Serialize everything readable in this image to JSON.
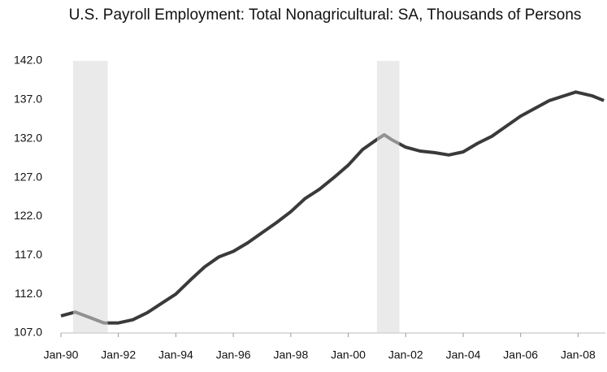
{
  "chart_data": {
    "type": "line",
    "title": "U.S. Payroll Employment: Total Nonagricultural: SA, Thousands of Persons",
    "x": [
      1990.0,
      1990.5,
      1991.0,
      1991.5,
      1992.0,
      1992.5,
      1993.0,
      1993.5,
      1994.0,
      1994.5,
      1995.0,
      1995.5,
      1996.0,
      1996.5,
      1997.0,
      1997.5,
      1998.0,
      1998.5,
      1999.0,
      1999.5,
      2000.0,
      2000.5,
      2001.0,
      2001.25,
      2001.5,
      2002.0,
      2002.5,
      2003.0,
      2003.5,
      2004.0,
      2004.5,
      2005.0,
      2005.5,
      2006.0,
      2006.5,
      2007.0,
      2007.5,
      2007.92,
      2008.5,
      2008.9
    ],
    "series": [
      {
        "color": "#3a3a3a",
        "values": [
          109.2,
          109.7,
          109.0,
          108.3,
          108.3,
          108.7,
          109.6,
          110.8,
          112.0,
          113.8,
          115.5,
          116.8,
          117.5,
          118.6,
          119.9,
          121.2,
          122.6,
          124.3,
          125.5,
          127.0,
          128.6,
          130.6,
          131.9,
          132.5,
          131.9,
          130.9,
          130.4,
          130.2,
          129.9,
          130.3,
          131.4,
          132.3,
          133.6,
          134.9,
          135.9,
          136.9,
          137.5,
          138.0,
          137.5,
          136.9
        ]
      }
    ],
    "shading": [
      {
        "start": 1990.42,
        "end": 1991.63
      },
      {
        "start": 2001.0,
        "end": 2001.78
      }
    ],
    "shading_color": "#d9d9d9",
    "xlim": [
      1990.0,
      2008.95
    ],
    "xticks": [
      {
        "value": 1990,
        "label": "Jan-90"
      },
      {
        "value": 1992,
        "label": "Jan-92"
      },
      {
        "value": 1994,
        "label": "Jan-94"
      },
      {
        "value": 1996,
        "label": "Jan-96"
      },
      {
        "value": 1998,
        "label": "Jan-98"
      },
      {
        "value": 2000,
        "label": "Jan-00"
      },
      {
        "value": 2002,
        "label": "Jan-02"
      },
      {
        "value": 2004,
        "label": "Jan-04"
      },
      {
        "value": 2006,
        "label": "Jan-06"
      },
      {
        "value": 2008,
        "label": "Jan-08"
      }
    ],
    "ylim": [
      107,
      142
    ],
    "yticks": [
      {
        "value": 107,
        "label": "107.0"
      },
      {
        "value": 112,
        "label": "112.0"
      },
      {
        "value": 117,
        "label": "117.0"
      },
      {
        "value": 122,
        "label": "122.0"
      },
      {
        "value": 127,
        "label": "127.0"
      },
      {
        "value": 132,
        "label": "132.0"
      },
      {
        "value": 137,
        "label": "137.0"
      },
      {
        "value": 142,
        "label": "142.0"
      }
    ],
    "grid": false
  }
}
